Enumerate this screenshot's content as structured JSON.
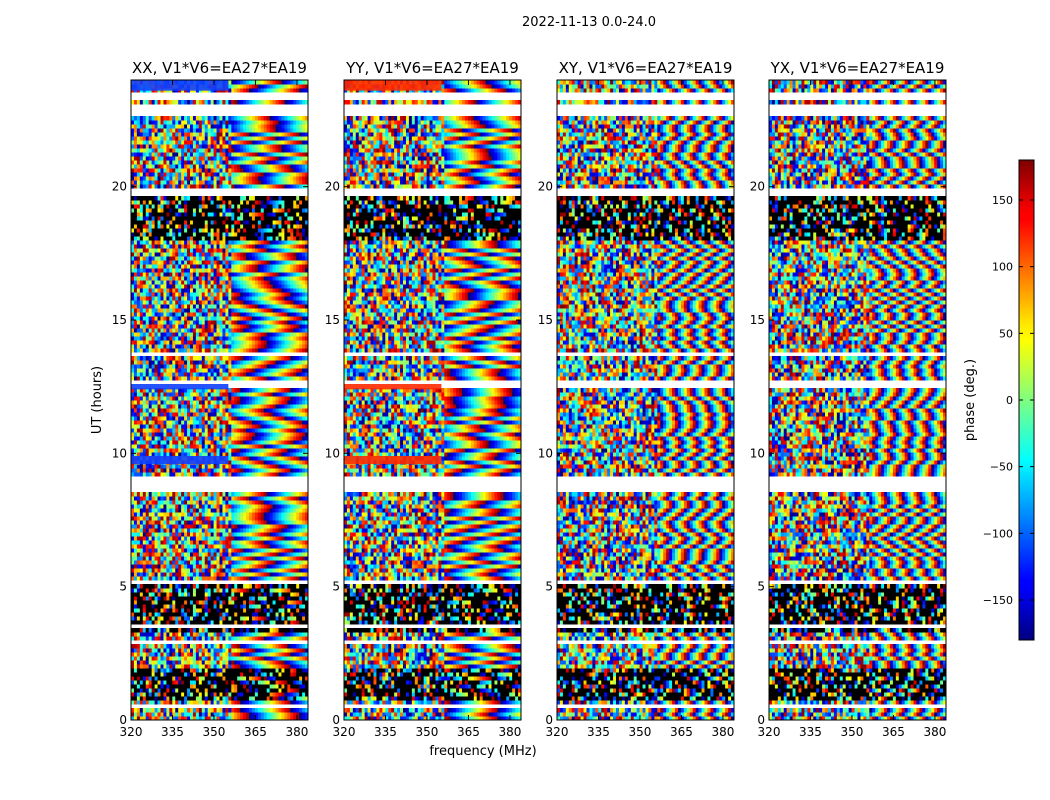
{
  "chart_data": {
    "type": "heatmap",
    "title": "2022-11-13 0.0-24.0",
    "xlabel": "frequency (MHz)",
    "ylabel": "UT (hours)",
    "xlim": [
      320,
      384
    ],
    "ylim": [
      0,
      24
    ],
    "x_ticks": [
      "320",
      "335",
      "350",
      "365",
      "380"
    ],
    "y_ticks": [
      "0",
      "5",
      "10",
      "15",
      "20"
    ],
    "panels": [
      {
        "title": "XX, V1*V6=EA27*EA19",
        "polarization": "XX"
      },
      {
        "title": "YY, V1*V6=EA27*EA19",
        "polarization": "YY"
      },
      {
        "title": "XY, V1*V6=EA27*EA19",
        "polarization": "XY"
      },
      {
        "title": "YX, V1*V6=EA27*EA19",
        "polarization": "YX"
      }
    ],
    "colorbar": {
      "label": "phase (deg.)",
      "range": [
        -180,
        180
      ],
      "colormap": "jet",
      "ticks": [
        "150",
        "100",
        "50",
        "0",
        "−50",
        "−100",
        "−150"
      ]
    }
  }
}
